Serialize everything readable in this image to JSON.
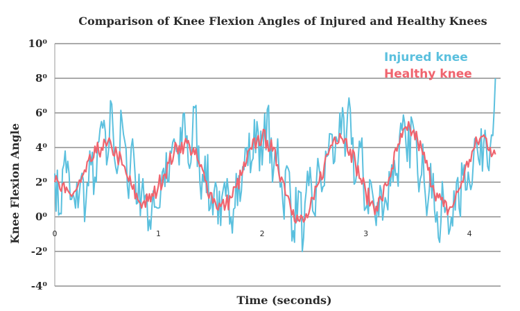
{
  "colors": {
    "injured": "#5bc0de",
    "healthy": "#f0646e",
    "grid": "#555555",
    "text": "#2b2b2b"
  },
  "chart_data": {
    "type": "line",
    "title": "Comparison of Knee Flexion Angles of Injured and Healthy Knees",
    "xlabel": "Time (seconds)",
    "ylabel": "Knee Flexion Angle",
    "xlim": [
      0,
      4.3
    ],
    "ylim": [
      -4,
      10
    ],
    "x_ticks": [
      0,
      1,
      2,
      3,
      4
    ],
    "x_tick_labels": [
      "0",
      "1",
      "2",
      "3",
      "4"
    ],
    "y_ticks": [
      -4,
      -2,
      0,
      2,
      4,
      6,
      8,
      10
    ],
    "y_tick_labels": [
      "-4⁰",
      "-2⁰",
      "0⁰",
      "2⁰",
      "4⁰",
      "6⁰",
      "8⁰",
      "10⁰"
    ],
    "grid": "horizontal",
    "legend_position": "top-right",
    "series": [
      {
        "name": "Injured knee",
        "color": "#5bc0de",
        "x": [
          0,
          0.05,
          0.1,
          0.15,
          0.2,
          0.25,
          0.3,
          0.35,
          0.4,
          0.45,
          0.5,
          0.55,
          0.6,
          0.65,
          0.7,
          0.75,
          0.8,
          0.85,
          0.9,
          0.95,
          1.0,
          1.05,
          1.1,
          1.15,
          1.2,
          1.25,
          1.3,
          1.35,
          1.4,
          1.45,
          1.5,
          1.55,
          1.6,
          1.65,
          1.7,
          1.75,
          1.8,
          1.85,
          1.9,
          1.95,
          2.0,
          2.05,
          2.1,
          2.15,
          2.2,
          2.25,
          2.3,
          2.35,
          2.4,
          2.45,
          2.5,
          2.55,
          2.6,
          2.65,
          2.7,
          2.75,
          2.8,
          2.85,
          2.9,
          2.95,
          3.0,
          3.05,
          3.1,
          3.15,
          3.2,
          3.25,
          3.3,
          3.35,
          3.4,
          3.45,
          3.5,
          3.55,
          3.6,
          3.65,
          3.7,
          3.75,
          3.8,
          3.85,
          3.9,
          3.95,
          4.0,
          4.05,
          4.1,
          4.15,
          4.2,
          4.25
        ],
        "y": [
          2.5,
          0.2,
          3.8,
          1.0,
          0.5,
          2.2,
          0.8,
          3.0,
          2.0,
          5.5,
          3.0,
          6.5,
          2.5,
          5.5,
          1.8,
          4.5,
          0.8,
          2.2,
          -0.8,
          1.5,
          0.5,
          2.8,
          2.0,
          4.5,
          3.0,
          6.0,
          2.8,
          6.3,
          2.0,
          3.5,
          0.5,
          2.0,
          -0.5,
          1.2,
          0.0,
          2.5,
          1.5,
          4.0,
          3.2,
          5.5,
          3.0,
          6.2,
          2.0,
          4.5,
          0.8,
          2.8,
          -0.8,
          1.5,
          -1.2,
          1.8,
          0.2,
          2.8,
          1.8,
          4.8,
          3.2,
          6.0,
          3.5,
          6.2,
          2.0,
          4.0,
          0.5,
          2.0,
          -0.5,
          1.5,
          0.8,
          3.0,
          2.5,
          5.0,
          3.2,
          5.5,
          2.5,
          4.2,
          0.8,
          2.5,
          -1.2,
          1.0,
          -1.0,
          1.5,
          0.5,
          3.0,
          2.0,
          4.5,
          3.0,
          5.0,
          4.0,
          8.0
        ]
      },
      {
        "name": "Healthy knee",
        "color": "#f0646e",
        "x": [
          0,
          0.05,
          0.1,
          0.15,
          0.2,
          0.25,
          0.3,
          0.35,
          0.4,
          0.45,
          0.5,
          0.55,
          0.6,
          0.65,
          0.7,
          0.75,
          0.8,
          0.85,
          0.9,
          0.95,
          1.0,
          1.05,
          1.1,
          1.15,
          1.2,
          1.25,
          1.3,
          1.35,
          1.4,
          1.45,
          1.5,
          1.55,
          1.6,
          1.65,
          1.7,
          1.75,
          1.8,
          1.85,
          1.9,
          1.95,
          2.0,
          2.05,
          2.1,
          2.15,
          2.2,
          2.25,
          2.3,
          2.35,
          2.4,
          2.45,
          2.5,
          2.55,
          2.6,
          2.65,
          2.7,
          2.75,
          2.8,
          2.85,
          2.9,
          2.95,
          3.0,
          3.05,
          3.1,
          3.15,
          3.2,
          3.25,
          3.3,
          3.35,
          3.4,
          3.45,
          3.5,
          3.55,
          3.6,
          3.65,
          3.7,
          3.75,
          3.8,
          3.85,
          3.9,
          3.95,
          4.0,
          4.05,
          4.1,
          4.15,
          4.2,
          4.25
        ],
        "y": [
          2.0,
          1.6,
          1.4,
          1.3,
          1.5,
          2.0,
          2.6,
          3.2,
          3.7,
          4.0,
          4.1,
          4.0,
          3.6,
          3.0,
          2.3,
          1.6,
          1.0,
          0.8,
          0.9,
          1.2,
          1.8,
          2.4,
          3.1,
          3.7,
          4.1,
          4.2,
          4.1,
          3.6,
          2.9,
          2.1,
          1.4,
          0.8,
          0.6,
          0.7,
          1.1,
          1.7,
          2.4,
          3.2,
          3.9,
          4.4,
          4.6,
          4.4,
          3.8,
          3.0,
          2.1,
          1.2,
          0.4,
          -0.2,
          -0.3,
          0.2,
          1.0,
          2.0,
          3.0,
          3.9,
          4.6,
          4.8,
          4.5,
          3.9,
          3.1,
          2.2,
          1.4,
          0.8,
          0.6,
          1.0,
          1.8,
          2.8,
          3.8,
          4.6,
          5.0,
          4.9,
          4.4,
          3.6,
          2.7,
          1.8,
          1.1,
          0.6,
          0.4,
          0.8,
          1.6,
          2.5,
          3.3,
          4.0,
          4.5,
          4.6,
          4.0,
          3.6
        ]
      }
    ]
  }
}
